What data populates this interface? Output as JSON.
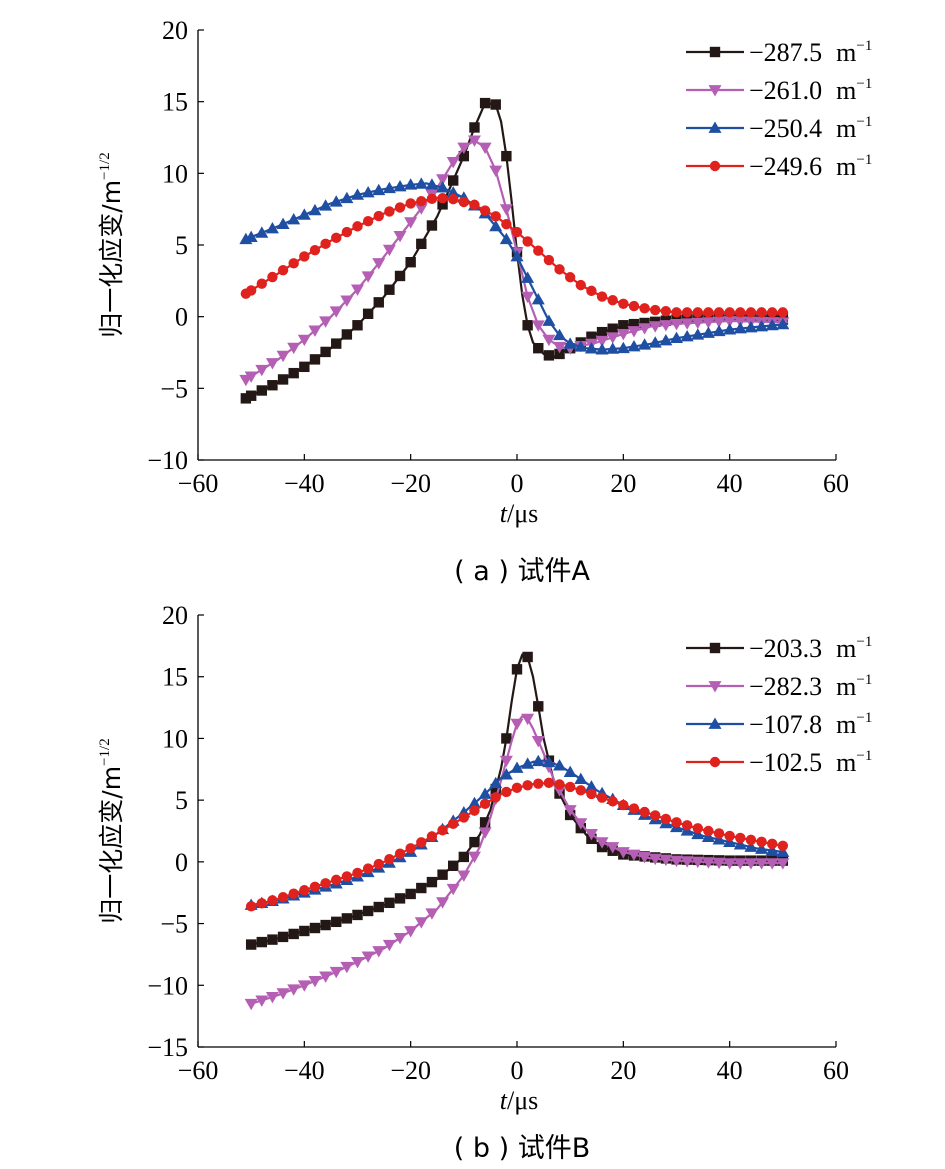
{
  "chart_data": [
    {
      "type": "line",
      "caption": "( a ) 试件A",
      "xlabel_italic": "t",
      "xlabel_unit": "/μs",
      "ylabel_main": "归一化应变/m",
      "ylabel_sup": "−1/2",
      "xlim": [
        -60,
        60
      ],
      "ylim": [
        -10,
        20
      ],
      "xticks": [
        -60,
        -40,
        -20,
        0,
        20,
        40,
        60
      ],
      "yticks": [
        -10,
        -5,
        0,
        5,
        10,
        15,
        20
      ],
      "xtick_labels": [
        "−60",
        "−40",
        "−20",
        "0",
        "20",
        "40",
        "60"
      ],
      "ytick_labels": [
        "−10",
        "−5",
        "0",
        "5",
        "10",
        "15",
        "20"
      ],
      "grid": false,
      "legend_position": "top-right",
      "unit_base": "m",
      "unit_sup": "−1",
      "series": [
        {
          "name": "−287.5",
          "color": "#231815",
          "marker": "square",
          "points": [
            [
              -51,
              -5.7
            ],
            [
              -45,
              -4.6
            ],
            [
              -40,
              -3.5
            ],
            [
              -35,
              -2.2
            ],
            [
              -30,
              -0.6
            ],
            [
              -25,
              1.4
            ],
            [
              -20,
              3.8
            ],
            [
              -15,
              7.0
            ],
            [
              -12,
              9.5
            ],
            [
              -10,
              11.2
            ],
            [
              -8,
              13.2
            ],
            [
              -6,
              14.9
            ],
            [
              -4,
              14.8
            ],
            [
              -3,
              13.6
            ],
            [
              -2,
              11.2
            ],
            [
              -1,
              8.0
            ],
            [
              0,
              4.5
            ],
            [
              1,
              1.5
            ],
            [
              2,
              -0.6
            ],
            [
              3,
              -1.8
            ],
            [
              5,
              -2.6
            ],
            [
              7,
              -2.8
            ],
            [
              10,
              -2.2
            ],
            [
              15,
              -1.2
            ],
            [
              20,
              -0.6
            ],
            [
              30,
              -0.2
            ],
            [
              40,
              0
            ],
            [
              51,
              0
            ]
          ]
        },
        {
          "name": "−261.0",
          "color": "#b45fb4",
          "marker": "triangle-down",
          "points": [
            [
              -51,
              -4.4
            ],
            [
              -45,
              -3.0
            ],
            [
              -40,
              -1.6
            ],
            [
              -35,
              0.0
            ],
            [
              -30,
              1.9
            ],
            [
              -25,
              4.2
            ],
            [
              -20,
              6.6
            ],
            [
              -15,
              9.0
            ],
            [
              -12,
              10.8
            ],
            [
              -10,
              11.8
            ],
            [
              -8,
              12.3
            ],
            [
              -6,
              11.8
            ],
            [
              -4,
              10.2
            ],
            [
              -2,
              7.5
            ],
            [
              0,
              4.5
            ],
            [
              2,
              1.4
            ],
            [
              4,
              -0.6
            ],
            [
              6,
              -1.6
            ],
            [
              8,
              -2.1
            ],
            [
              10,
              -2.2
            ],
            [
              15,
              -1.8
            ],
            [
              20,
              -1.2
            ],
            [
              25,
              -0.7
            ],
            [
              30,
              -0.5
            ],
            [
              40,
              -0.3
            ],
            [
              51,
              -0.4
            ]
          ]
        },
        {
          "name": "−250.4",
          "color": "#1f4fa3",
          "marker": "triangle-up",
          "points": [
            [
              -51,
              5.4
            ],
            [
              -45,
              6.3
            ],
            [
              -40,
              7.1
            ],
            [
              -35,
              7.9
            ],
            [
              -30,
              8.5
            ],
            [
              -25,
              8.9
            ],
            [
              -20,
              9.2
            ],
            [
              -17,
              9.3
            ],
            [
              -14,
              9.0
            ],
            [
              -10,
              8.3
            ],
            [
              -6,
              7.2
            ],
            [
              -2,
              5.4
            ],
            [
              0,
              4.2
            ],
            [
              2,
              2.7
            ],
            [
              4,
              1.2
            ],
            [
              6,
              -0.3
            ],
            [
              8,
              -1.3
            ],
            [
              10,
              -1.9
            ],
            [
              13,
              -2.2
            ],
            [
              16,
              -2.3
            ],
            [
              20,
              -2.2
            ],
            [
              25,
              -1.9
            ],
            [
              30,
              -1.5
            ],
            [
              40,
              -0.9
            ],
            [
              51,
              -0.5
            ]
          ]
        },
        {
          "name": "−249.6",
          "color": "#e0221e",
          "marker": "circle",
          "points": [
            [
              -51,
              1.6
            ],
            [
              -45,
              3.0
            ],
            [
              -40,
              4.2
            ],
            [
              -35,
              5.3
            ],
            [
              -30,
              6.3
            ],
            [
              -25,
              7.2
            ],
            [
              -20,
              7.9
            ],
            [
              -15,
              8.3
            ],
            [
              -12,
              8.2
            ],
            [
              -8,
              7.8
            ],
            [
              -4,
              7.0
            ],
            [
              0,
              5.9
            ],
            [
              4,
              4.6
            ],
            [
              8,
              3.3
            ],
            [
              12,
              2.2
            ],
            [
              16,
              1.4
            ],
            [
              20,
              0.9
            ],
            [
              25,
              0.5
            ],
            [
              30,
              0.3
            ],
            [
              40,
              0.3
            ],
            [
              51,
              0.3
            ]
          ]
        }
      ]
    },
    {
      "type": "line",
      "caption": "( b ) 试件B",
      "xlabel_italic": "t",
      "xlabel_unit": "/μs",
      "ylabel_main": "归一化应变/m",
      "ylabel_sup": "−1/2",
      "xlim": [
        -60,
        60
      ],
      "ylim": [
        -15,
        20
      ],
      "xticks": [
        -60,
        -40,
        -20,
        0,
        20,
        40,
        60
      ],
      "yticks": [
        -15,
        -10,
        -5,
        0,
        5,
        10,
        15,
        20
      ],
      "xtick_labels": [
        "−60",
        "−40",
        "−20",
        "0",
        "20",
        "40",
        "60"
      ],
      "ytick_labels": [
        "−15",
        "−10",
        "−5",
        "0",
        "5",
        "10",
        "15",
        "20"
      ],
      "grid": false,
      "legend_position": "top-right",
      "unit_base": "m",
      "unit_sup": "−1",
      "series": [
        {
          "name": "−203.3",
          "color": "#231815",
          "marker": "square",
          "points": [
            [
              -50,
              -6.7
            ],
            [
              -45,
              -6.2
            ],
            [
              -40,
              -5.6
            ],
            [
              -35,
              -5.0
            ],
            [
              -30,
              -4.3
            ],
            [
              -25,
              -3.5
            ],
            [
              -20,
              -2.6
            ],
            [
              -15,
              -1.4
            ],
            [
              -10,
              0.4
            ],
            [
              -7,
              2.2
            ],
            [
              -5,
              4.2
            ],
            [
              -3,
              7.6
            ],
            [
              -2,
              10.0
            ],
            [
              -1,
              13.0
            ],
            [
              0,
              15.6
            ],
            [
              1,
              16.8
            ],
            [
              2,
              16.6
            ],
            [
              3,
              15.0
            ],
            [
              4,
              12.6
            ],
            [
              5,
              10.0
            ],
            [
              7,
              6.4
            ],
            [
              10,
              3.8
            ],
            [
              13,
              2.2
            ],
            [
              16,
              1.2
            ],
            [
              20,
              0.6
            ],
            [
              30,
              0.2
            ],
            [
              40,
              0.1
            ],
            [
              50,
              0.1
            ]
          ]
        },
        {
          "name": "−282.3",
          "color": "#b45fb4",
          "marker": "triangle-down",
          "points": [
            [
              -50,
              -11.5
            ],
            [
              -45,
              -10.8
            ],
            [
              -40,
              -10.0
            ],
            [
              -35,
              -9.1
            ],
            [
              -30,
              -8.1
            ],
            [
              -25,
              -7.0
            ],
            [
              -20,
              -5.6
            ],
            [
              -15,
              -3.8
            ],
            [
              -10,
              -1.1
            ],
            [
              -7,
              1.2
            ],
            [
              -5,
              3.6
            ],
            [
              -3,
              6.6
            ],
            [
              -1,
              9.8
            ],
            [
              0,
              11.2
            ],
            [
              1,
              11.8
            ],
            [
              2,
              11.6
            ],
            [
              3,
              10.8
            ],
            [
              5,
              8.8
            ],
            [
              7,
              6.6
            ],
            [
              10,
              4.2
            ],
            [
              13,
              2.6
            ],
            [
              16,
              1.6
            ],
            [
              20,
              0.8
            ],
            [
              25,
              0.3
            ],
            [
              30,
              0.1
            ],
            [
              40,
              -0.1
            ],
            [
              50,
              -0.1
            ]
          ]
        },
        {
          "name": "−107.8",
          "color": "#1f4fa3",
          "marker": "triangle-up",
          "points": [
            [
              -50,
              -3.5
            ],
            [
              -45,
              -3.1
            ],
            [
              -40,
              -2.5
            ],
            [
              -35,
              -1.9
            ],
            [
              -30,
              -1.2
            ],
            [
              -25,
              -0.3
            ],
            [
              -20,
              0.8
            ],
            [
              -15,
              2.3
            ],
            [
              -10,
              4.0
            ],
            [
              -6,
              5.5
            ],
            [
              -3,
              6.8
            ],
            [
              0,
              7.6
            ],
            [
              3,
              8.1
            ],
            [
              5,
              8.2
            ],
            [
              8,
              7.8
            ],
            [
              11,
              7.0
            ],
            [
              15,
              5.8
            ],
            [
              20,
              4.6
            ],
            [
              25,
              3.6
            ],
            [
              30,
              2.8
            ],
            [
              35,
              2.1
            ],
            [
              40,
              1.6
            ],
            [
              45,
              1.1
            ],
            [
              50,
              0.8
            ]
          ]
        },
        {
          "name": "−102.5",
          "color": "#e0221e",
          "marker": "circle",
          "points": [
            [
              -50,
              -3.6
            ],
            [
              -45,
              -3.0
            ],
            [
              -40,
              -2.3
            ],
            [
              -35,
              -1.6
            ],
            [
              -30,
              -0.9
            ],
            [
              -25,
              0.0
            ],
            [
              -20,
              1.1
            ],
            [
              -15,
              2.3
            ],
            [
              -10,
              3.6
            ],
            [
              -6,
              4.7
            ],
            [
              -3,
              5.5
            ],
            [
              0,
              6.0
            ],
            [
              3,
              6.3
            ],
            [
              6,
              6.4
            ],
            [
              9,
              6.2
            ],
            [
              12,
              5.8
            ],
            [
              16,
              5.2
            ],
            [
              20,
              4.6
            ],
            [
              25,
              3.9
            ],
            [
              30,
              3.2
            ],
            [
              35,
              2.6
            ],
            [
              40,
              2.1
            ],
            [
              45,
              1.7
            ],
            [
              50,
              1.3
            ]
          ]
        }
      ]
    }
  ]
}
